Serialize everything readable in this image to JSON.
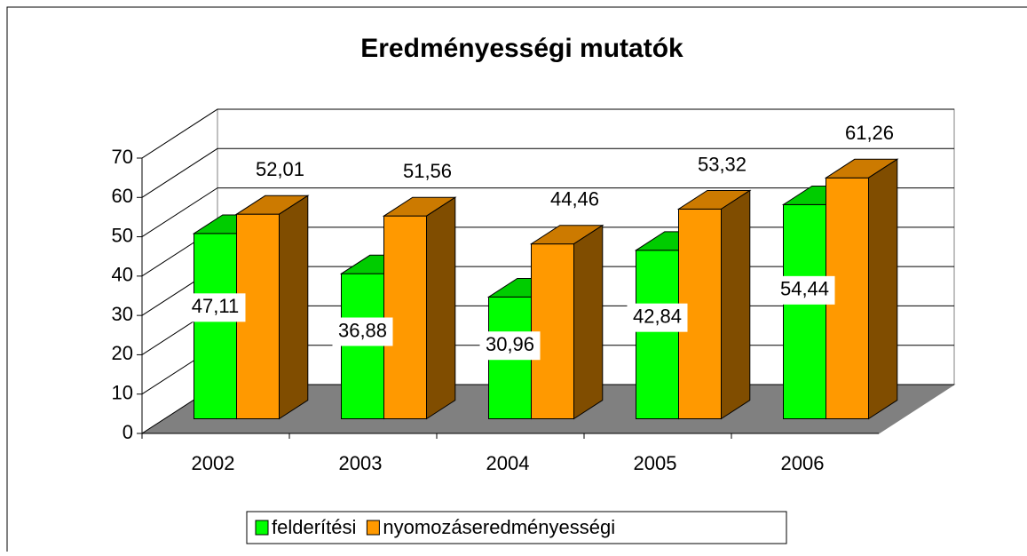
{
  "chart_data": {
    "type": "bar3d",
    "title": "Eredményességi mutatók",
    "categories": [
      "2002",
      "2003",
      "2004",
      "2005",
      "2006"
    ],
    "series": [
      {
        "name": "felderítési",
        "color": "#00ff00",
        "values": [
          47.11,
          36.88,
          30.96,
          42.84,
          54.44
        ],
        "value_labels": [
          "47,11",
          "36,88",
          "30,96",
          "42,84",
          "54,44"
        ]
      },
      {
        "name": "nyomozáseredményességi",
        "color": "#ff9900",
        "values": [
          52.01,
          51.56,
          44.46,
          53.32,
          61.26
        ],
        "value_labels": [
          "52,01",
          "51,56",
          "44,46",
          "53,32",
          "61,26"
        ]
      }
    ],
    "ylim": [
      0,
      70
    ],
    "yticks": [
      0,
      10,
      20,
      30,
      40,
      50,
      60,
      70
    ],
    "grid": true,
    "legend": "bottom"
  }
}
